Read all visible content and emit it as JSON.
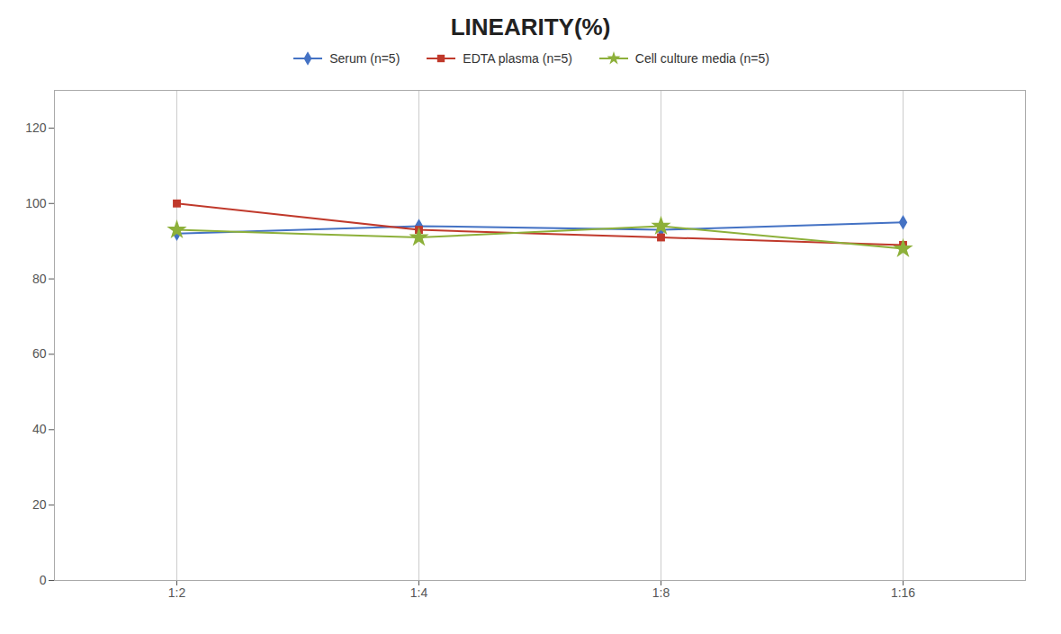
{
  "chart_data": {
    "type": "line",
    "title": "LINEARITY(%)",
    "categories": [
      "1:2",
      "1:4",
      "1:8",
      "1:16"
    ],
    "series": [
      {
        "name": "Serum (n=5)",
        "color": "#4472C4",
        "marker": "diamond",
        "values": [
          92,
          94,
          93,
          95
        ]
      },
      {
        "name": "EDTA plasma (n=5)",
        "color": "#C0392B",
        "marker": "square",
        "values": [
          100,
          93,
          91,
          89
        ]
      },
      {
        "name": "Cell culture media (n=5)",
        "color": "#8DB03A",
        "marker": "star",
        "values": [
          93,
          91,
          94,
          88
        ]
      }
    ],
    "ylim": [
      0,
      130
    ],
    "yticks": [
      0,
      20,
      40,
      60,
      80,
      100,
      120
    ],
    "grid": true,
    "legend": "top"
  }
}
